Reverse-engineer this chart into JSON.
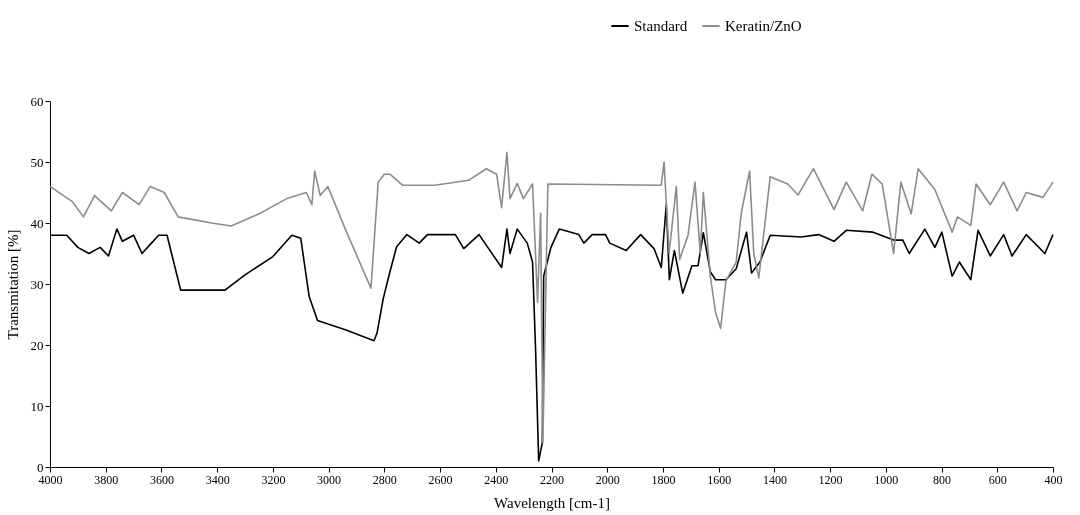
{
  "chart_data": {
    "type": "line",
    "xlabel": "Wavelength [cm-1]",
    "ylabel": "Transmitation [%]",
    "xlim": [
      4000,
      400
    ],
    "xticks": [
      4000,
      3800,
      3600,
      3400,
      3200,
      3000,
      2800,
      2600,
      2400,
      2200,
      2000,
      1800,
      1600,
      1400,
      1200,
      1000,
      800,
      600,
      400
    ],
    "ylim": [
      0,
      60
    ],
    "yticks": [
      0,
      10,
      20,
      30,
      40,
      50,
      60
    ],
    "grid": false,
    "legend": "top",
    "marker": "none",
    "line_style": "solid",
    "series": [
      {
        "name": "Standard",
        "color": "#000000",
        "x": [
          4000,
          3940,
          3900,
          3860,
          3820,
          3790,
          3760,
          3740,
          3700,
          3670,
          3640,
          3610,
          3580,
          3531,
          3372,
          3300,
          3200,
          3132,
          3100,
          3070,
          3040,
          2940,
          2837,
          2826,
          2804,
          2781,
          2756,
          2719,
          2675,
          2645,
          2545,
          2515,
          2460,
          2379,
          2360,
          2349,
          2323,
          2287,
          2268,
          2257,
          2246,
          2233,
          2228,
          2202,
          2172,
          2102,
          2084,
          2054,
          2006,
          1991,
          1932,
          1880,
          1832,
          1806,
          1788,
          1777,
          1759,
          1729,
          1696,
          1674,
          1655,
          1630,
          1611,
          1574,
          1537,
          1500,
          1482,
          1452,
          1415,
          1304,
          1241,
          1186,
          1142,
          1046,
          972,
          939,
          916,
          860,
          824,
          799,
          762,
          736,
          695,
          669,
          625,
          577,
          547,
          496,
          429,
          400
        ],
        "values": [
          38,
          38,
          36,
          35,
          36,
          34.6,
          39,
          37,
          38,
          35,
          36.5,
          38,
          38,
          29,
          29,
          31.5,
          34.5,
          38,
          37.5,
          28,
          24,
          22.5,
          20.7,
          22,
          27.6,
          31.8,
          36.1,
          38.1,
          36.7,
          38.1,
          38.1,
          35.8,
          38.1,
          32.7,
          39,
          35,
          39,
          36.7,
          33.6,
          19,
          1,
          4,
          31.3,
          36,
          39,
          38.1,
          36.7,
          38.1,
          38.1,
          36.7,
          35.5,
          38.1,
          35.8,
          32.7,
          43,
          30.7,
          35.5,
          28.5,
          33,
          33,
          38.4,
          32,
          30.7,
          30.7,
          32.5,
          38.5,
          31.8,
          33.6,
          38,
          37.7,
          38.1,
          37,
          38.8,
          38.5,
          37.2,
          37.2,
          35,
          39,
          36,
          38.5,
          31.3,
          33.6,
          30.7,
          38.8,
          34.6,
          38.1,
          34.6,
          38.1,
          35,
          38.1
        ]
      },
      {
        "name": "Keratin/ZnO",
        "color": "#8c8c8c",
        "x": [
          4000,
          3920,
          3880,
          3840,
          3780,
          3740,
          3680,
          3640,
          3590,
          3540,
          3420,
          3350,
          3250,
          3150,
          3080,
          3060,
          3050,
          3030,
          3003,
          2940,
          2848,
          2822,
          2800,
          2780,
          2735,
          2619,
          2497,
          2434,
          2397,
          2379,
          2360,
          2349,
          2323,
          2301,
          2268,
          2250,
          2239,
          2231,
          2221,
          2213,
          1806,
          1796,
          1778,
          1752,
          1740,
          1710,
          1685,
          1666,
          1655,
          1630,
          1611,
          1593,
          1574,
          1537,
          1519,
          1489,
          1474,
          1456,
          1415,
          1352,
          1315,
          1260,
          1186,
          1142,
          1083,
          1050,
          1013,
          972,
          946,
          909,
          884,
          824,
          762,
          743,
          695,
          676,
          625,
          577,
          529,
          496,
          436,
          400
        ],
        "values": [
          46,
          43.5,
          41,
          44.5,
          42,
          45,
          43,
          46,
          45,
          41,
          40,
          39.5,
          41.5,
          44,
          45,
          43,
          48.5,
          44.5,
          46,
          39,
          29.3,
          46.7,
          48,
          48,
          46.2,
          46.2,
          47,
          48.9,
          48,
          42.5,
          51.6,
          44,
          46.5,
          44,
          46.4,
          27,
          41.6,
          4,
          27.6,
          46.4,
          46.2,
          50,
          35,
          46,
          34,
          38,
          46.7,
          35,
          45,
          31.3,
          25.3,
          22.7,
          30.5,
          33.6,
          41.6,
          48.5,
          35,
          31,
          47.6,
          46.4,
          44.6,
          48.9,
          42.2,
          46.7,
          42,
          48,
          46.4,
          35,
          46.7,
          41.5,
          48.9,
          45.5,
          38.5,
          41,
          39.6,
          46.4,
          43,
          46.7,
          42,
          45,
          44.2,
          46.7
        ]
      }
    ]
  }
}
